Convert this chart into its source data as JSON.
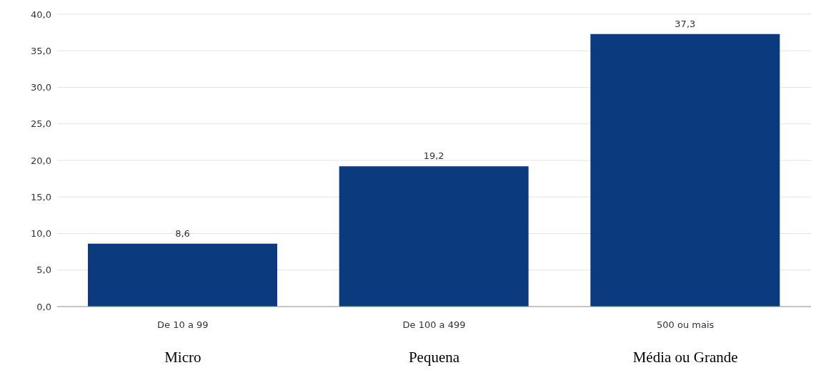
{
  "chart_data": {
    "type": "bar",
    "categories": [
      "De 10 a 99",
      "De 100 a 499",
      "500 ou mais"
    ],
    "values": [
      8.6,
      19.2,
      37.3
    ],
    "value_labels": [
      "8,6",
      "19,2",
      "37,3"
    ],
    "color": "#0b3a7e",
    "ylim": [
      0,
      40
    ],
    "yticks": [
      {
        "value": 0,
        "label": "0,0"
      },
      {
        "value": 5,
        "label": "5,0"
      },
      {
        "value": 10,
        "label": "10,0"
      },
      {
        "value": 15,
        "label": "15,0"
      },
      {
        "value": 20,
        "label": "20,0"
      },
      {
        "value": 25,
        "label": "25,0"
      },
      {
        "value": 30,
        "label": "30,0"
      },
      {
        "value": 35,
        "label": "35,0"
      },
      {
        "value": 40,
        "label": "40,0"
      }
    ],
    "grid": "y",
    "annotations": [
      "Micro",
      "Pequena",
      "Média ou Grande"
    ]
  }
}
